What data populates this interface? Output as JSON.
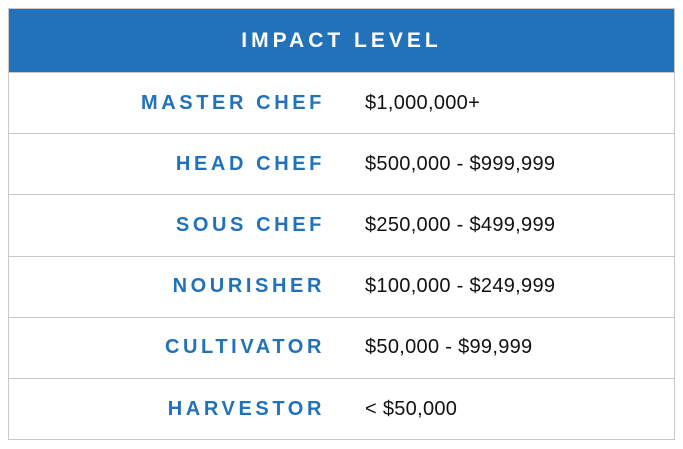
{
  "table": {
    "header": "IMPACT LEVEL",
    "rows": [
      [
        "MASTER CHEF",
        "$1,000,000+"
      ],
      [
        "HEAD CHEF",
        "$500,000 - $999,999"
      ],
      [
        "SOUS CHEF",
        "$250,000 - $499,999"
      ],
      [
        "NOURISHER",
        "$100,000 - $249,999"
      ],
      [
        "CULTIVATOR",
        "$50,000 - $99,999"
      ],
      [
        "HARVESTOR",
        "< $50,000"
      ]
    ]
  }
}
